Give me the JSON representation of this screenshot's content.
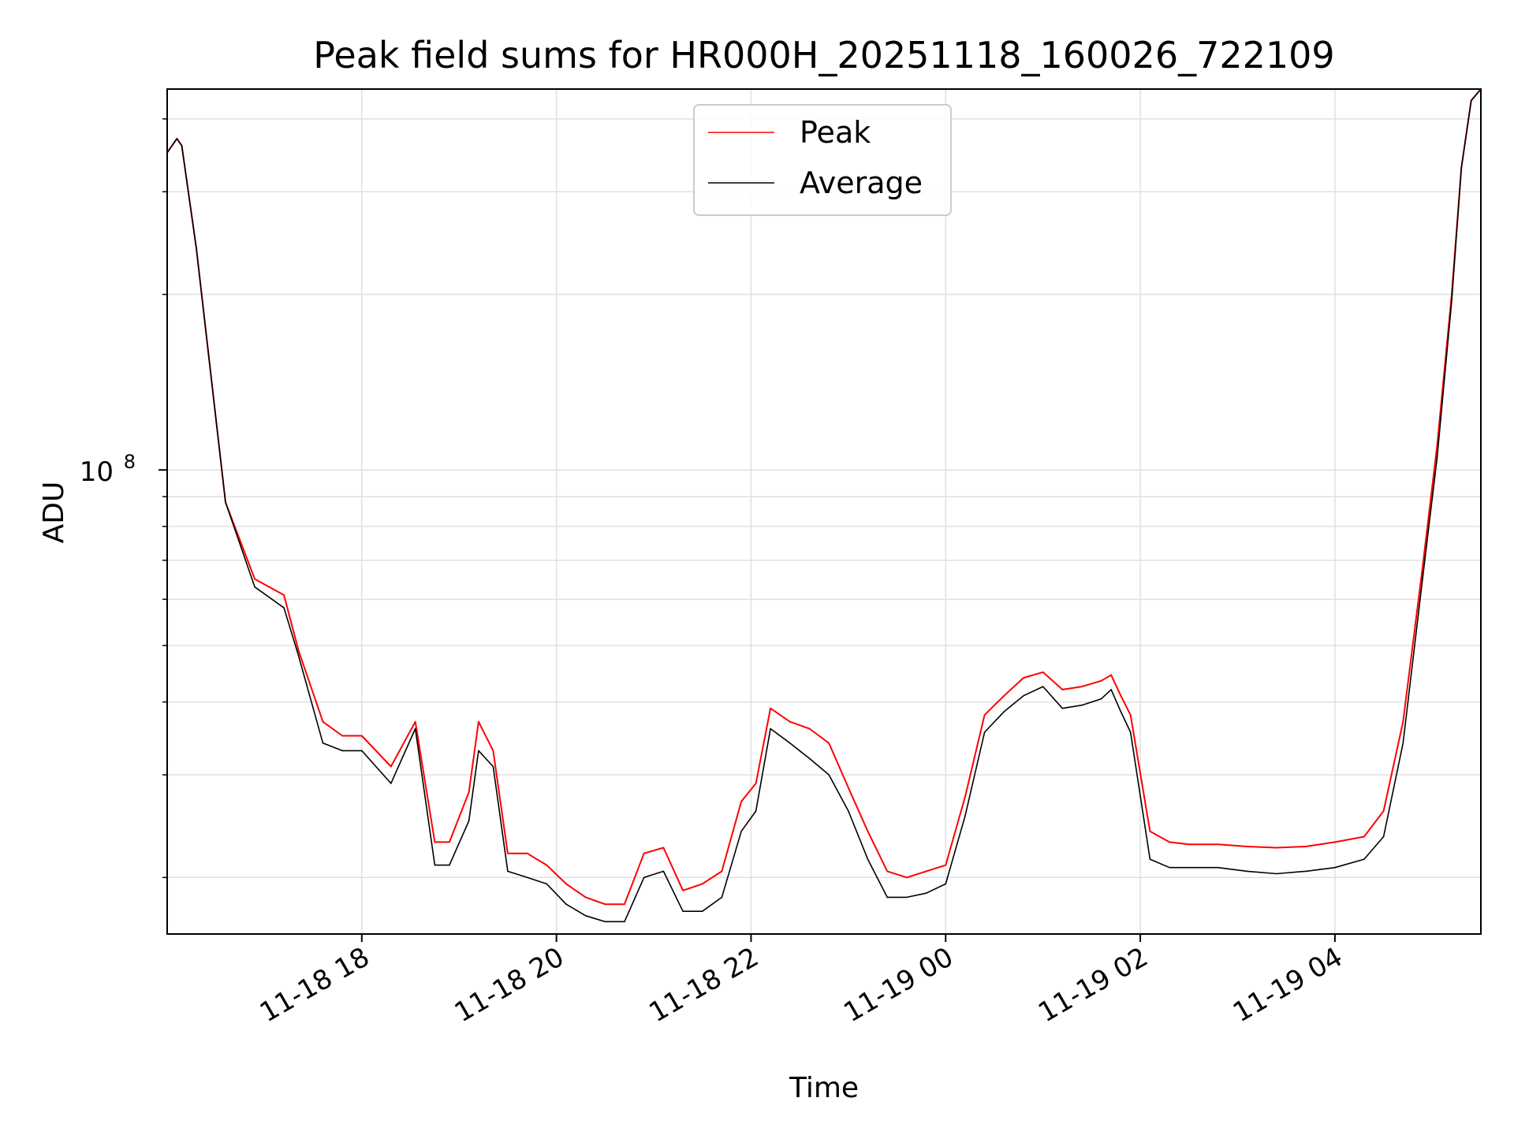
{
  "chart_data": {
    "type": "line",
    "title": "Peak field sums for HR000H_20251118_160026_722109",
    "xlabel": "Time",
    "ylabel": "ADU",
    "yscale": "log",
    "ylim": [
      16000000,
      450000000
    ],
    "xlim_hours": [
      16.0,
      29.5
    ],
    "x_unit": "hours since 2025-11-18 00:00",
    "grid": true,
    "legend_position": "top-center",
    "xticks": [
      {
        "value": 18,
        "label": "11-18 18"
      },
      {
        "value": 20,
        "label": "11-18 20"
      },
      {
        "value": 22,
        "label": "11-18 22"
      },
      {
        "value": 24,
        "label": "11-19 00"
      },
      {
        "value": 26,
        "label": "11-19 02"
      },
      {
        "value": 28,
        "label": "11-19 04"
      }
    ],
    "yticks_major": [
      {
        "value": 100000000,
        "base": "10",
        "exp": "8"
      }
    ],
    "yticks_minor": [
      20000000,
      30000000,
      40000000,
      50000000,
      60000000,
      70000000,
      80000000,
      90000000,
      200000000,
      300000000,
      400000000
    ],
    "series": [
      {
        "name": "Peak",
        "color": "#ff0000",
        "x": [
          16.0,
          16.1,
          16.15,
          16.3,
          16.6,
          16.9,
          17.2,
          17.35,
          17.6,
          17.8,
          18.0,
          18.3,
          18.55,
          18.75,
          18.9,
          19.1,
          19.2,
          19.35,
          19.5,
          19.7,
          19.9,
          20.1,
          20.3,
          20.5,
          20.7,
          20.9,
          21.1,
          21.3,
          21.5,
          21.7,
          21.9,
          22.05,
          22.2,
          22.4,
          22.6,
          22.8,
          23.0,
          23.2,
          23.4,
          23.6,
          23.8,
          24.0,
          24.2,
          24.4,
          24.6,
          24.8,
          25.0,
          25.2,
          25.4,
          25.6,
          25.7,
          25.8,
          25.9,
          26.1,
          26.3,
          26.5,
          26.8,
          27.1,
          27.4,
          27.7,
          28.0,
          28.3,
          28.5,
          28.7,
          28.9,
          29.05,
          29.2,
          29.3,
          29.4,
          29.5
        ],
        "values": [
          350000000,
          370000000,
          360000000,
          240000000,
          88000000,
          65000000,
          61000000,
          49000000,
          37000000,
          35000000,
          35000000,
          31000000,
          37000000,
          23000000,
          23000000,
          28000000,
          37000000,
          33000000,
          22000000,
          22000000,
          21000000,
          19500000,
          18500000,
          18000000,
          18000000,
          22000000,
          22500000,
          19000000,
          19500000,
          20500000,
          27000000,
          29000000,
          39000000,
          37000000,
          36000000,
          34000000,
          28500000,
          24000000,
          20500000,
          20000000,
          20500000,
          21000000,
          27500000,
          38000000,
          41000000,
          44000000,
          45000000,
          42000000,
          42500000,
          43500000,
          44500000,
          41000000,
          38000000,
          24000000,
          23000000,
          22800000,
          22800000,
          22600000,
          22500000,
          22600000,
          23000000,
          23500000,
          26000000,
          37000000,
          68000000,
          110000000,
          200000000,
          330000000,
          430000000,
          450000000
        ]
      },
      {
        "name": "Average",
        "color": "#000000",
        "x": [
          16.0,
          16.1,
          16.15,
          16.3,
          16.6,
          16.9,
          17.2,
          17.35,
          17.6,
          17.8,
          18.0,
          18.3,
          18.55,
          18.75,
          18.9,
          19.1,
          19.2,
          19.35,
          19.5,
          19.7,
          19.9,
          20.1,
          20.3,
          20.5,
          20.7,
          20.9,
          21.1,
          21.3,
          21.5,
          21.7,
          21.9,
          22.05,
          22.2,
          22.4,
          22.6,
          22.8,
          23.0,
          23.2,
          23.4,
          23.6,
          23.8,
          24.0,
          24.2,
          24.4,
          24.6,
          24.8,
          25.0,
          25.2,
          25.4,
          25.6,
          25.7,
          25.8,
          25.9,
          26.1,
          26.3,
          26.5,
          26.8,
          27.1,
          27.4,
          27.7,
          28.0,
          28.3,
          28.5,
          28.7,
          28.9,
          29.05,
          29.2,
          29.3,
          29.4,
          29.5
        ],
        "values": [
          350000000,
          370000000,
          360000000,
          240000000,
          88000000,
          63000000,
          58000000,
          48000000,
          34000000,
          33000000,
          33000000,
          29000000,
          36000000,
          21000000,
          21000000,
          25000000,
          33000000,
          31000000,
          20500000,
          20000000,
          19500000,
          18000000,
          17200000,
          16800000,
          16800000,
          20000000,
          20500000,
          17500000,
          17500000,
          18500000,
          24000000,
          26000000,
          36000000,
          34000000,
          32000000,
          30000000,
          26000000,
          21500000,
          18500000,
          18500000,
          18800000,
          19500000,
          25500000,
          35500000,
          38500000,
          41000000,
          42500000,
          39000000,
          39500000,
          40500000,
          42000000,
          38500000,
          35500000,
          21500000,
          20800000,
          20800000,
          20800000,
          20500000,
          20300000,
          20500000,
          20800000,
          21500000,
          23500000,
          34000000,
          65000000,
          105000000,
          195000000,
          330000000,
          430000000,
          450000000
        ]
      }
    ]
  }
}
